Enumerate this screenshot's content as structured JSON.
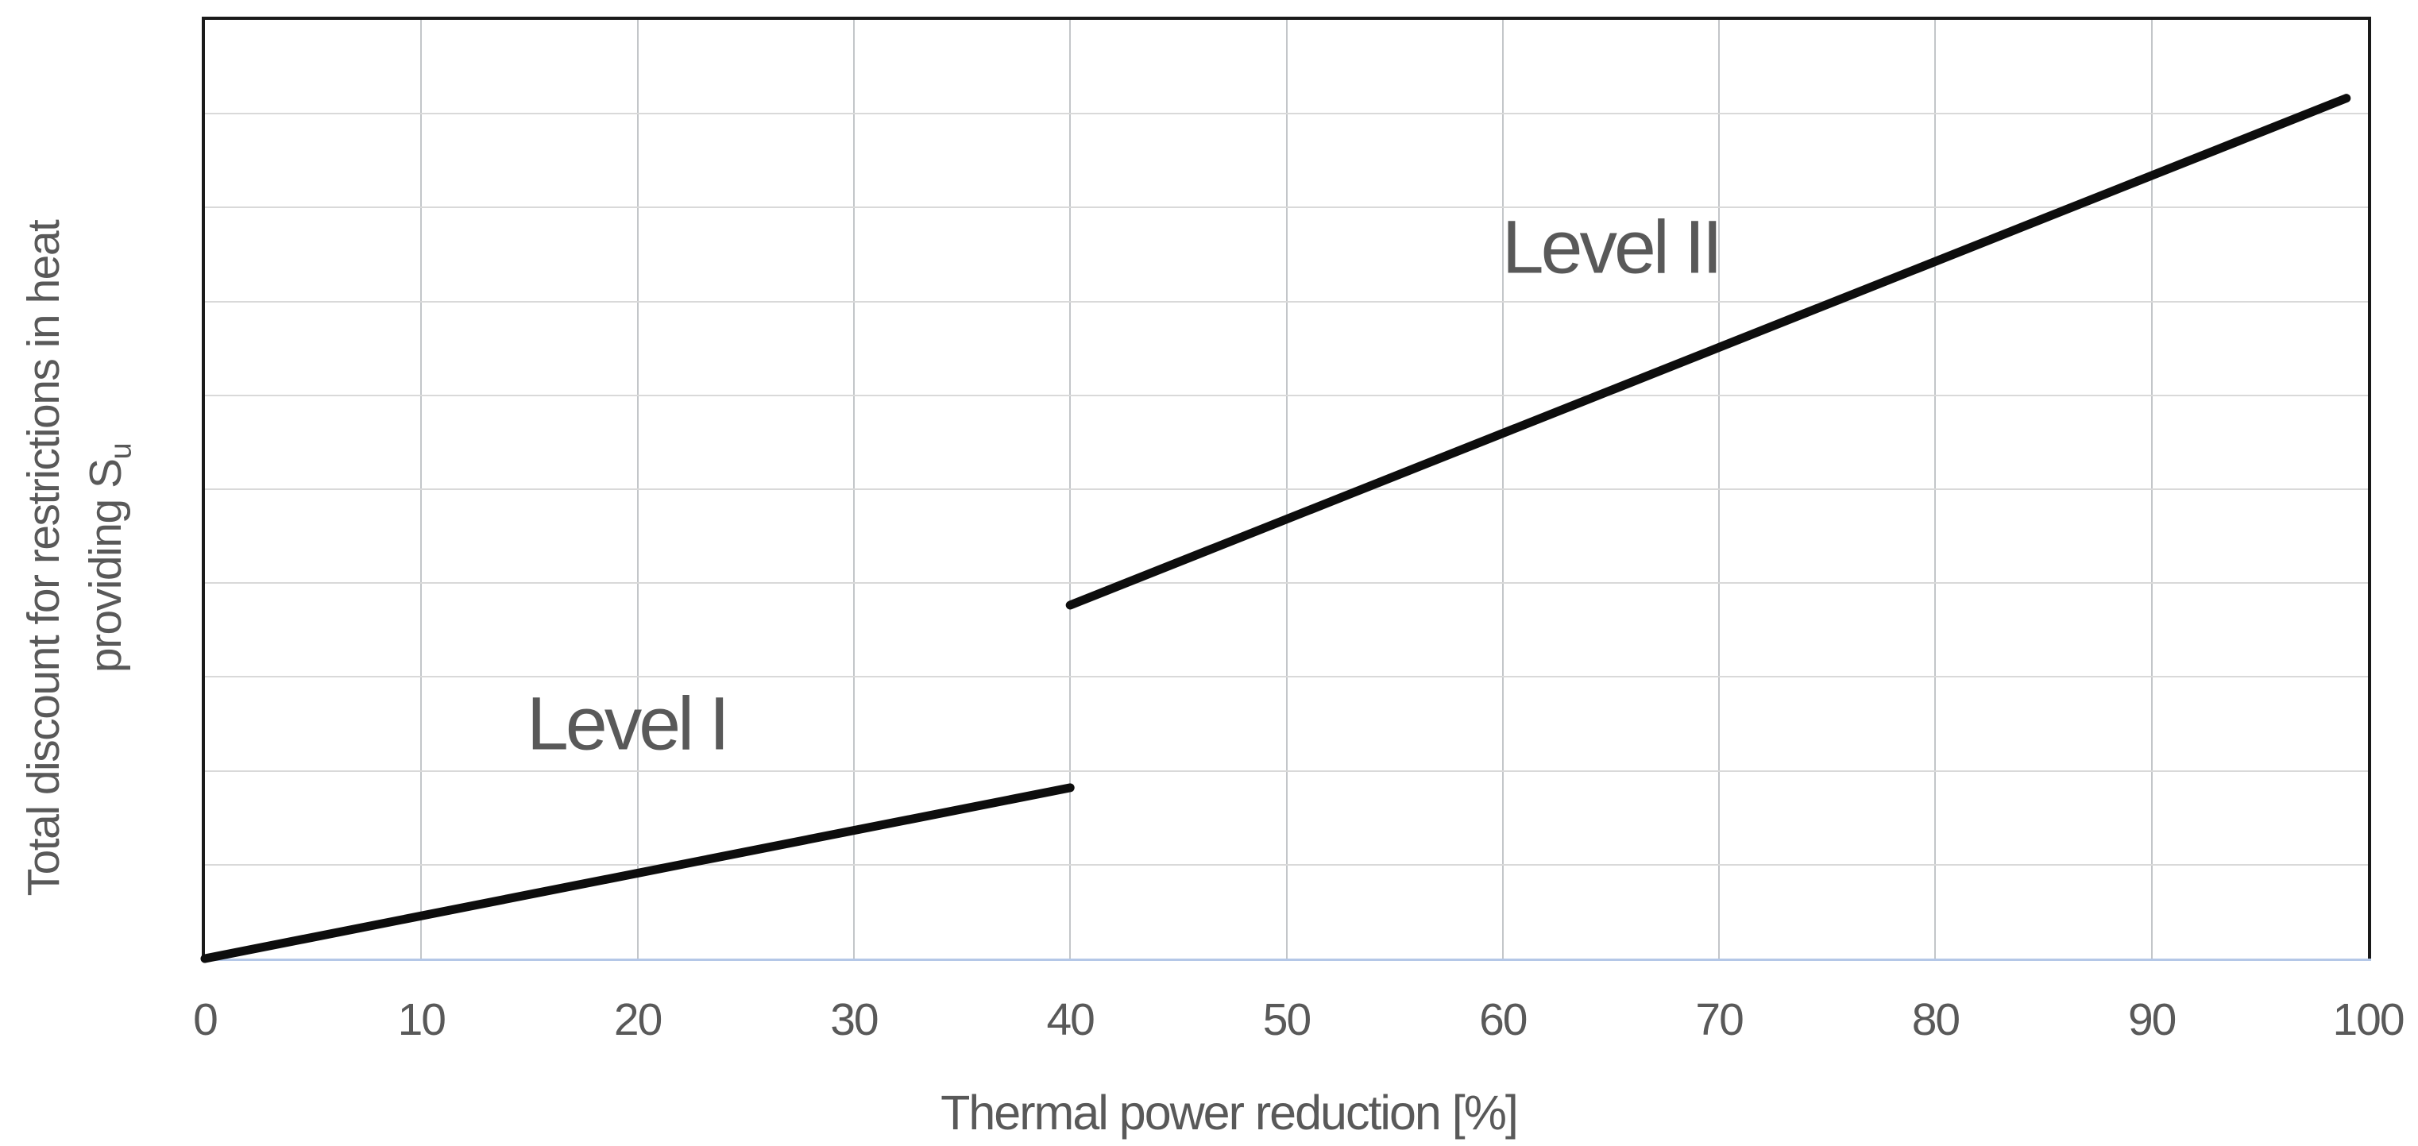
{
  "chart_data": {
    "type": "line",
    "title": "",
    "xlabel": "Thermal power reduction [%]",
    "ylabel_lines": [
      "Total discount for restrictions in heat",
      "providing S"
    ],
    "ylabel_sub": "u",
    "xlim": [
      0,
      100
    ],
    "x_ticks": [
      0,
      10,
      20,
      30,
      40,
      50,
      60,
      70,
      80,
      90,
      100
    ],
    "ylim": [
      0,
      1
    ],
    "y_divisions": 10,
    "y_tick_labels_shown": false,
    "grid": true,
    "legend_position": "none",
    "series": [
      {
        "name": "Level I",
        "points": [
          [
            0,
            0.0
          ],
          [
            40,
            0.182
          ]
        ]
      },
      {
        "name": "Level II",
        "points": [
          [
            40,
            0.3765
          ],
          [
            99,
            0.9165
          ]
        ]
      }
    ],
    "annotations": [
      {
        "text": "Level I",
        "x": 19.5,
        "y": 0.25
      },
      {
        "text": "Level II",
        "x": 65.0,
        "y": 0.757
      }
    ],
    "colors": {
      "line": "#0d0d0d",
      "border": "#1a1a1a",
      "grid_vertical": "#c3c6c9",
      "grid_horizontal": "#d9d9d9",
      "axis_bottom_blue": "#b4c7e7",
      "text": "#595959"
    }
  }
}
